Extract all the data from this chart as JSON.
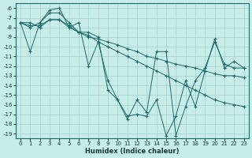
{
  "xlabel": "Humidex (Indice chaleur)",
  "xlim": [
    -0.5,
    23.5
  ],
  "ylim": [
    -19.5,
    -5.5
  ],
  "yticks": [
    -6,
    -7,
    -8,
    -9,
    -10,
    -11,
    -12,
    -13,
    -14,
    -15,
    -16,
    -17,
    -18,
    -19
  ],
  "xticks": [
    0,
    1,
    2,
    3,
    4,
    5,
    6,
    7,
    8,
    9,
    10,
    11,
    12,
    13,
    14,
    15,
    16,
    17,
    18,
    19,
    20,
    21,
    22,
    23
  ],
  "background_color": "#c8ece8",
  "grid_color": "#a0d0cc",
  "line_color": "#1a6b6b",
  "line1": [
    -7.5,
    -10.5,
    -7.5,
    -6.2,
    -6.0,
    -8.0,
    -7.5,
    -12.0,
    -9.5,
    -13.5,
    -15.5,
    -17.2,
    -17.0,
    -17.2,
    -15.5,
    -19.2,
    -17.2,
    -13.5,
    -16.2,
    -12.5,
    -9.2,
    -12.2,
    -11.5,
    -12.2
  ],
  "line2": [
    -7.5,
    -7.8,
    -7.8,
    -7.2,
    -7.2,
    -7.8,
    -8.5,
    -8.8,
    -9.5,
    -10.0,
    -10.5,
    -11.0,
    -11.5,
    -12.0,
    -12.5,
    -13.0,
    -13.5,
    -14.0,
    -14.5,
    -15.0,
    -15.5,
    -15.8,
    -16.0,
    -16.2
  ],
  "line3": [
    -7.5,
    -7.5,
    -8.0,
    -7.2,
    -7.2,
    -8.0,
    -8.5,
    -9.0,
    -9.2,
    -9.5,
    -9.8,
    -10.2,
    -10.5,
    -11.0,
    -11.2,
    -11.5,
    -11.8,
    -12.0,
    -12.2,
    -12.5,
    -12.8,
    -13.0,
    -13.0,
    -13.2
  ],
  "line4": [
    -7.5,
    -8.0,
    -7.5,
    -6.5,
    -6.5,
    -7.5,
    -8.5,
    -8.5,
    -9.0,
    -14.5,
    -15.5,
    -17.5,
    -15.5,
    -16.8,
    -10.5,
    -10.5,
    -19.2,
    -16.2,
    -13.5,
    -12.2,
    -9.5,
    -11.8,
    -12.2,
    -12.2
  ]
}
